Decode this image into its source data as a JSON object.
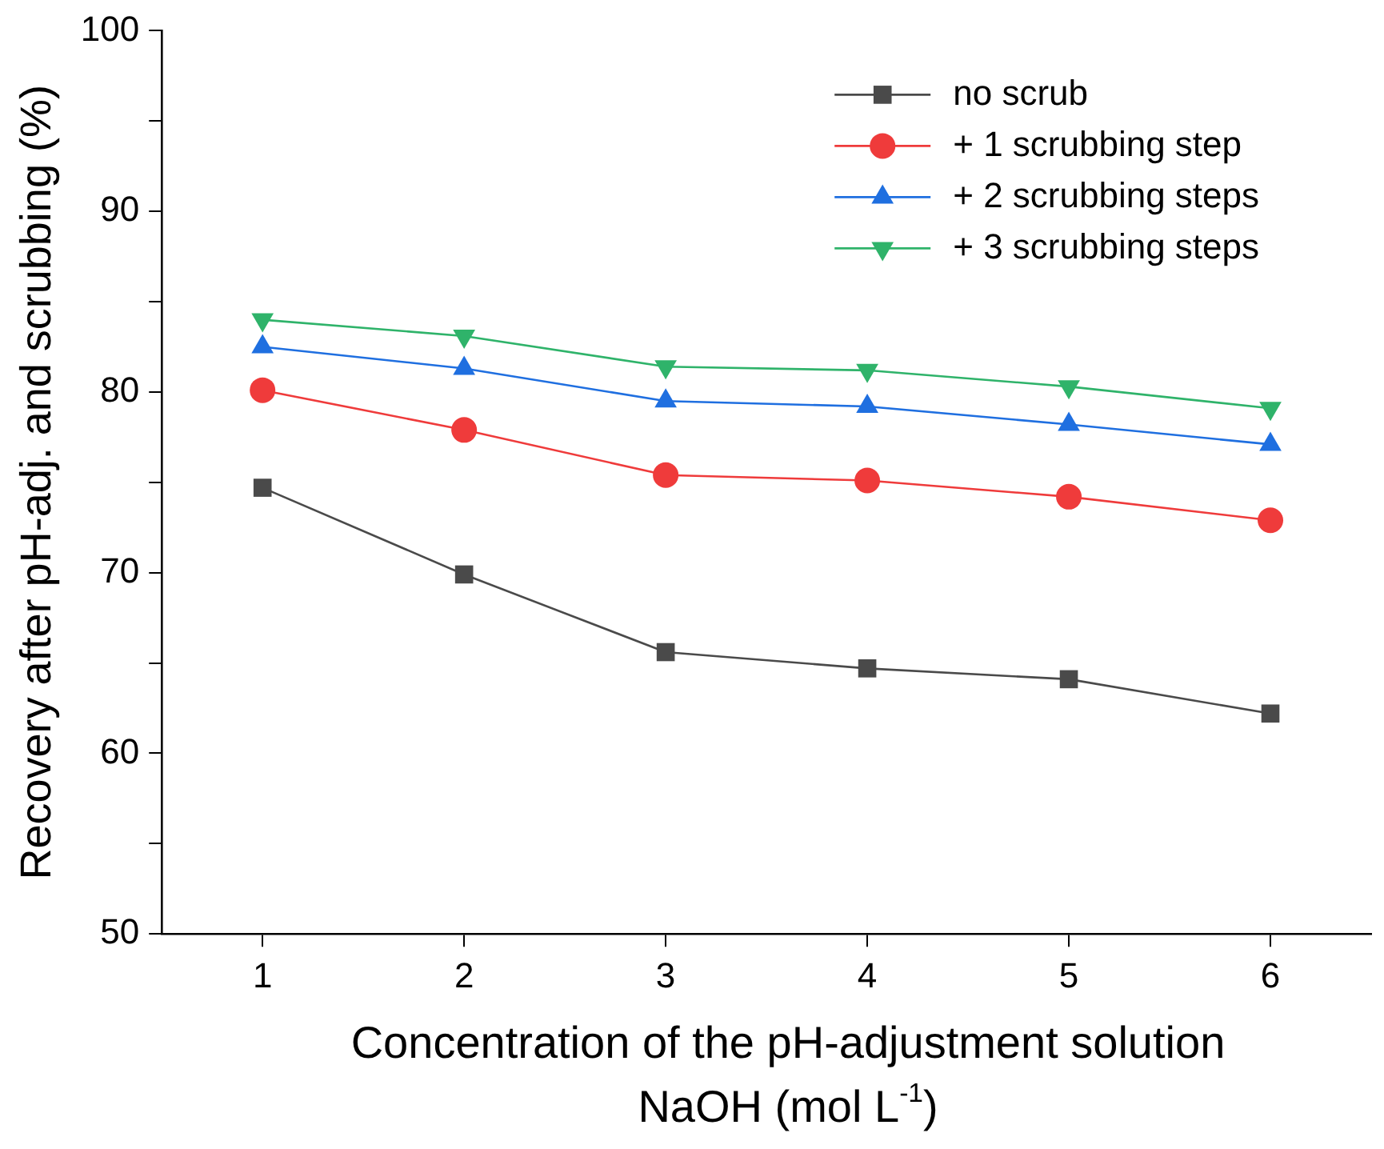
{
  "chart_data": {
    "type": "line",
    "xlabel": "Concentration of the pH-adjustment solution\nNaOH (mol L$^{-1}$)",
    "ylabel": "Recovery after pH-adj. and scrubbing (%)",
    "x": [
      1,
      2,
      3,
      4,
      5,
      6
    ],
    "xlim": [
      0.5,
      6.5
    ],
    "xticks": [
      1,
      2,
      3,
      4,
      5,
      6
    ],
    "ylim": [
      50,
      100
    ],
    "yticks": [
      50,
      {
        "value": 55,
        "label": null
      },
      60,
      {
        "value": 65,
        "label": null
      },
      70,
      {
        "value": 75,
        "label": null
      },
      80,
      {
        "value": 85,
        "label": null
      },
      90,
      {
        "value": 95,
        "label": null
      },
      100
    ],
    "grid": false,
    "legend": "top right",
    "line_style": "solid",
    "series": [
      {
        "name": "no scrub",
        "color": "#4a4a4a",
        "marker": "square",
        "values": [
          74.7,
          69.9,
          65.6,
          64.7,
          64.1,
          62.2
        ]
      },
      {
        "name": "+ 1 scrubbing step",
        "color": "#ef3b3b",
        "marker": "circle",
        "values": [
          80.1,
          77.9,
          75.4,
          75.1,
          74.2,
          72.9
        ]
      },
      {
        "name": "+ 2 scrubbing steps",
        "color": "#1f6fe0",
        "marker": "triangle",
        "values": [
          82.5,
          81.3,
          79.5,
          79.2,
          78.2,
          77.1
        ]
      },
      {
        "name": "+ 3 scrubbing steps",
        "color": "#2fb36a",
        "marker": "triangle-down",
        "values": [
          84.0,
          83.1,
          81.4,
          81.2,
          80.3,
          79.1
        ]
      }
    ]
  }
}
